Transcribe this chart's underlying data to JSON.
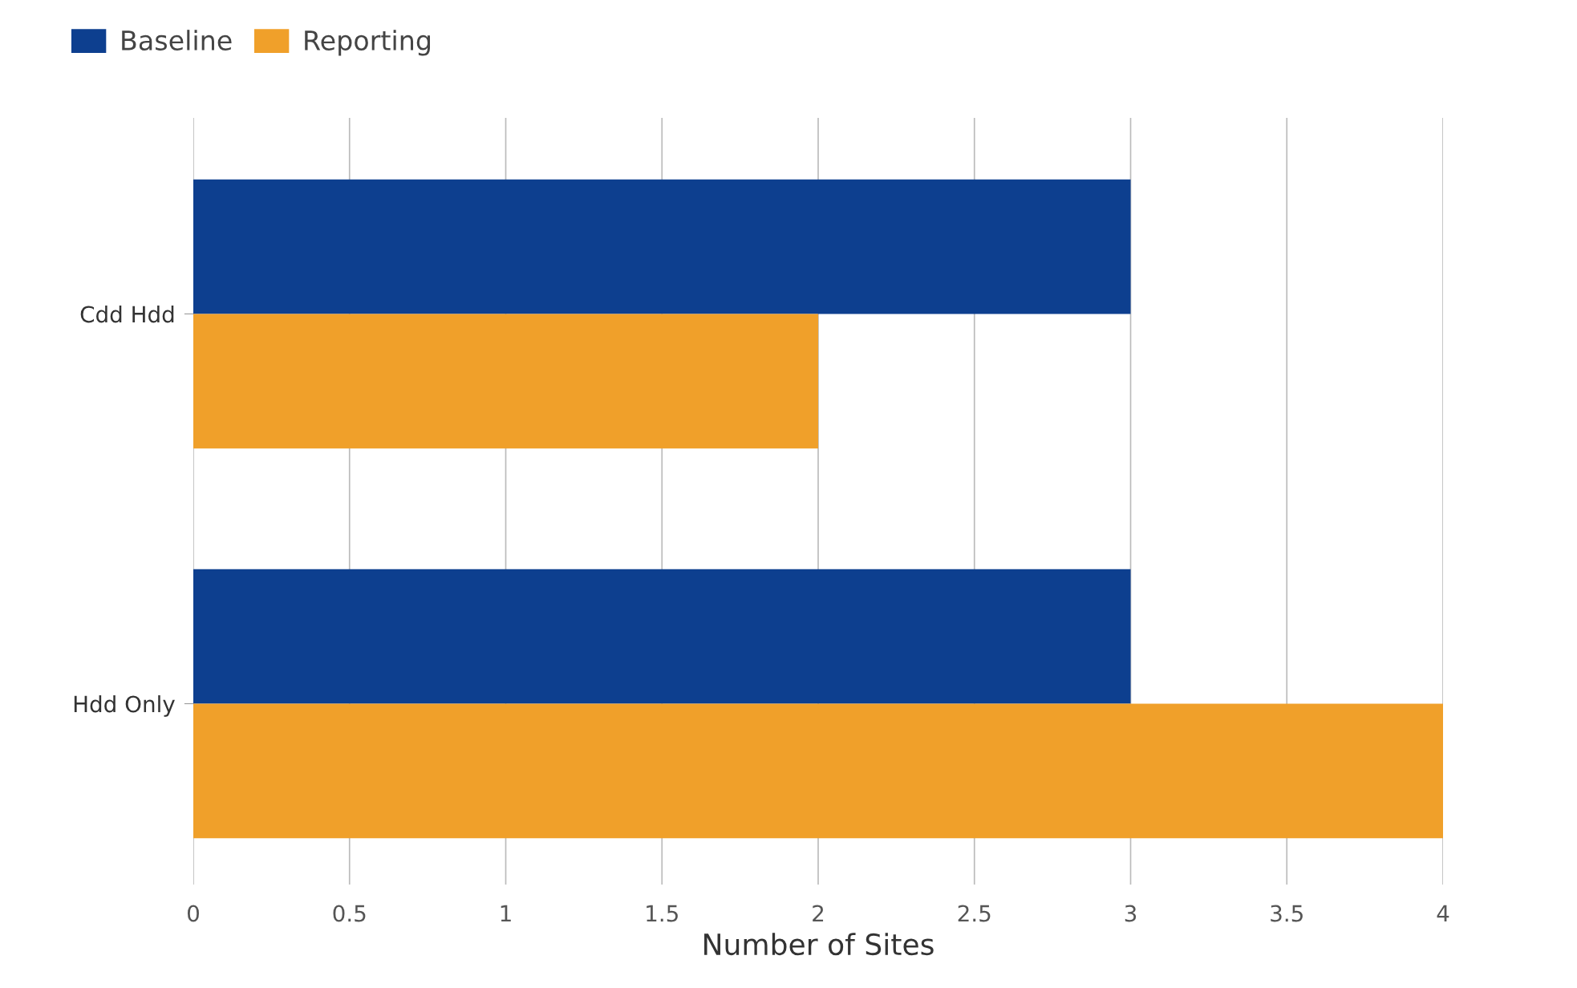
{
  "chart_data": {
    "type": "bar",
    "orientation": "horizontal",
    "categories": [
      "Cdd Hdd",
      "Hdd Only"
    ],
    "series": [
      {
        "name": "Baseline",
        "color": "#0d3f8f",
        "values": [
          3,
          3
        ]
      },
      {
        "name": "Reporting",
        "color": "#f0a02a",
        "values": [
          2,
          4
        ]
      }
    ],
    "xlabel": "Number of Sites",
    "xlim": [
      0,
      4
    ],
    "xticks": [
      0,
      0.5,
      1,
      1.5,
      2,
      2.5,
      3,
      3.5,
      4
    ],
    "grid": "x",
    "legend": "top left"
  }
}
